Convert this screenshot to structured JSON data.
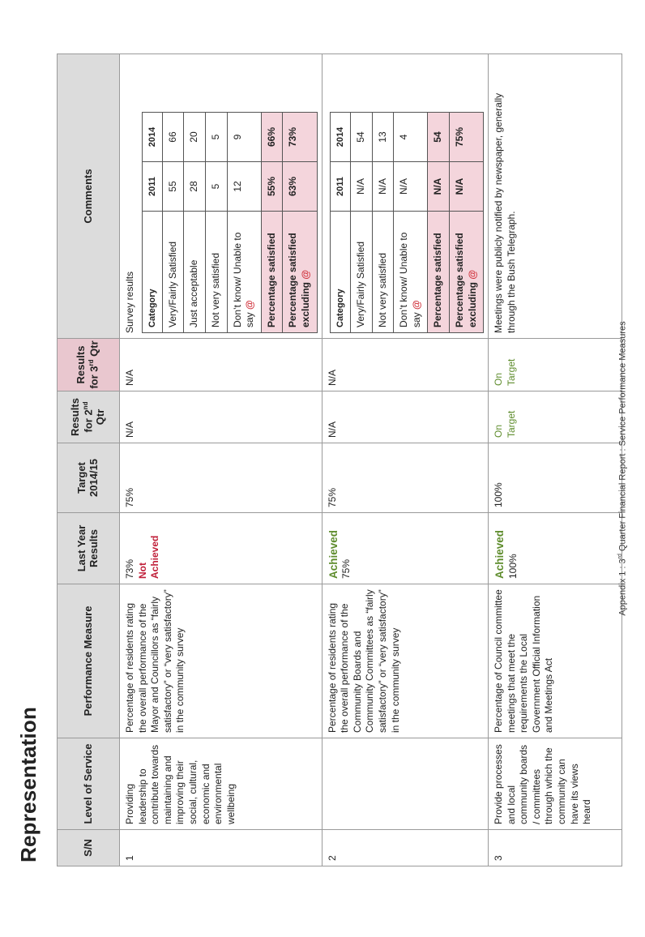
{
  "heading": "Representation",
  "headers": {
    "sn": "S/N",
    "level": "Level of Service",
    "measure": "Performance Measure",
    "last_year": "Last Year Results",
    "target": "Target 2014/15",
    "q2_pre": "Results for 2",
    "q2_sup": "nd",
    "q2_post": " Qtr",
    "q3_pre": "Results for 3",
    "q3_sup": "rd",
    "q3_post": " Qtr",
    "comments": "Comments"
  },
  "rows": [
    {
      "sn": "1",
      "level": "Providing leadership to contribute towards maintaining and improving their social, cultural, economic and environmental wellbeing",
      "measure": "Percentage of residents rating the overall performance of the Mayor and Councillors as “fairly satisfactory” or “very satisfactory” in the community survey",
      "last_value": "73%",
      "last_status": "Not Achieved",
      "target": "75%",
      "q2": "N/A",
      "q3": "N/A",
      "comment_intro": "Survey results",
      "survey": {
        "header": [
          "Category",
          "2011",
          "2014"
        ],
        "rows": [
          [
            "Very/Fairly Satisfied",
            "55",
            "66"
          ],
          [
            "Just acceptable",
            "28",
            "20"
          ],
          [
            "Not very satisfied",
            "5",
            "5"
          ],
          [
            "Don’t know/ Unable to say",
            "12",
            "9"
          ]
        ],
        "highlight": [
          [
            "Percentage satisfied",
            "55%",
            "66%"
          ],
          [
            "Percentage satisfied excluding",
            "63%",
            "73%"
          ]
        ]
      }
    },
    {
      "sn": "2",
      "level": "",
      "measure": "Percentage of residents rating the overall performance of the Community Boards and Community Committees as “fairly satisfactory” or “very satisfactory” in the community survey",
      "last_status": "Achieved",
      "last_value": "75%",
      "target": "75%",
      "q2": "N/A",
      "q3": "N/A",
      "survey": {
        "header": [
          "Category",
          "2011",
          "2014"
        ],
        "rows": [
          [
            "Very/Fairly Satisfied",
            "N/A",
            "54"
          ],
          [
            "Not very satisfied",
            "N/A",
            "13"
          ],
          [
            "Don’t know/ Unable to say",
            "N/A",
            "4"
          ]
        ],
        "highlight": [
          [
            "Percentage satisfied",
            "N/A",
            "54"
          ],
          [
            "Percentage satisfied excluding",
            "N/A",
            "75%"
          ]
        ]
      }
    },
    {
      "sn": "3",
      "level": "Provide processes and local community boards / committees through which the community can have its views heard",
      "measure": "Percentage of Council committee meetings that meet the requirements the Local Government Official Information and Meetings Act",
      "last_status": "Achieved",
      "last_value": "100%",
      "target": "100%",
      "q2": "On Target",
      "q3": "On Target",
      "comment": "Meetings were publicly notified by newspaper, generally through the Bush Telegraph."
    }
  ],
  "footer": {
    "pre": "Appendix 1 : 3",
    "sup": "rd",
    "post": " Quarter Financial Report : Service Performance Measures"
  },
  "colors": {
    "header_bg": "#dcdcdc",
    "pink_header": "#e9c7cf",
    "pink_cell": "#f4d5dc",
    "red": "#c0203a",
    "green": "#5e8c2c"
  }
}
